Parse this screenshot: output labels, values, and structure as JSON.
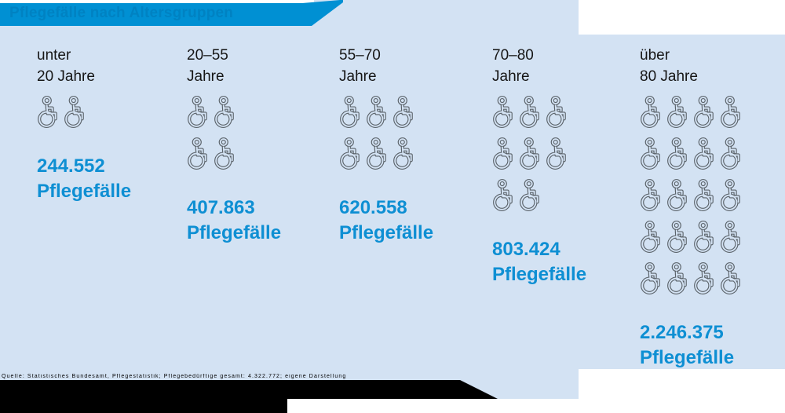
{
  "title": {
    "text": "Pflegefälle nach Altersgruppen"
  },
  "footer": {
    "source_note": "Quelle: Statistisches Bundesamt, Pflegestatistik; Pflegebedürftige gesamt: 4.322.772; eigene Darstellung"
  },
  "colors": {
    "banner_blue": "#0090d3",
    "panel_light_blue": "#d3e2f3",
    "accent_text_blue": "#0e8fd3",
    "icon_outline_gray": "#5a6269",
    "footer_black": "#000000"
  },
  "icon_legend": {
    "icon": "wheelchair-icon",
    "represents_approx": 100000
  },
  "chart_data": {
    "type": "pictogram",
    "title": "Pflegefälle nach Altersgruppen",
    "unit": "Pflegefälle",
    "categories": [
      "unter 20 Jahre",
      "20–55 Jahre",
      "55–70 Jahre",
      "70–80 Jahre",
      "über 80 Jahre"
    ],
    "values": [
      244552,
      407863,
      620558,
      803424,
      2246375
    ],
    "icons_per_category": [
      2,
      4,
      6,
      8,
      20
    ],
    "columns": [
      {
        "age_line1": "unter",
        "age_line2": "20 Jahre",
        "value_label": "244.552",
        "unit_label": "Pflegefälle",
        "icon_rows": [
          2
        ]
      },
      {
        "age_line1": "20–55",
        "age_line2": "Jahre",
        "value_label": "407.863",
        "unit_label": "Pflegefälle",
        "icon_rows": [
          2,
          2
        ]
      },
      {
        "age_line1": "55–70",
        "age_line2": "Jahre",
        "value_label": "620.558",
        "unit_label": "Pflegefälle",
        "icon_rows": [
          3,
          3
        ]
      },
      {
        "age_line1": "70–80",
        "age_line2": "Jahre",
        "value_label": "803.424",
        "unit_label": "Pflegefälle",
        "icon_rows": [
          3,
          3,
          2
        ]
      },
      {
        "age_line1": "über",
        "age_line2": "80 Jahre",
        "value_label": "2.246.375",
        "unit_label": "Pflegefälle",
        "icon_rows": [
          4,
          4,
          4,
          4,
          4
        ]
      }
    ]
  }
}
